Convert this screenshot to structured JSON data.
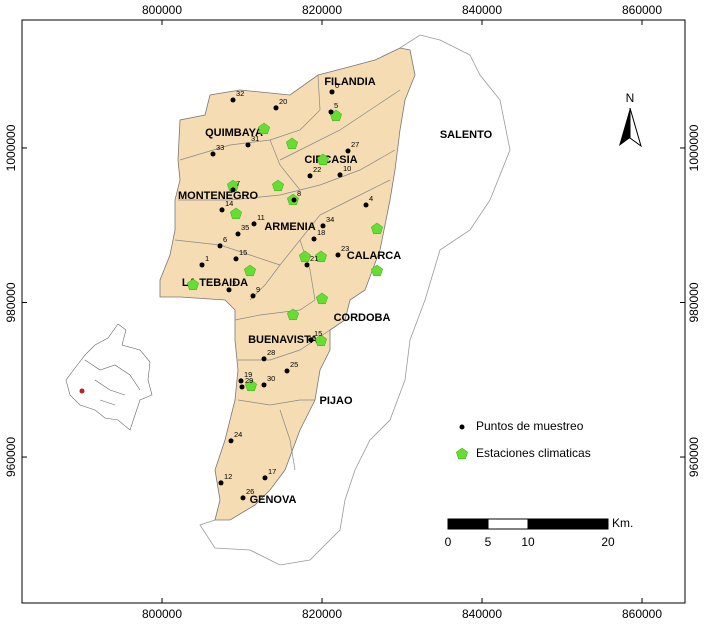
{
  "map": {
    "xlim": [
      782500,
      865375
    ],
    "ylim": [
      941110,
      1016560
    ],
    "xticks": [
      800000,
      820000,
      840000,
      860000
    ],
    "yticks": [
      960000,
      980000,
      1000000
    ],
    "north": "N",
    "regions": [
      "FILANDIA",
      "SALENTO",
      "QUIMBAYA",
      "CIRCASIA",
      "MONTENEGRO",
      "ARMENIA",
      "CALARCA",
      "LA TEBAIDA",
      "CORDOBA",
      "BUENAVISTA",
      "PIJAO",
      "GENOVA"
    ],
    "legend": {
      "points": "Puntos de muestreo",
      "stations": "Estaciones climaticas"
    },
    "scale": {
      "ticks": [
        0,
        5,
        10,
        20
      ],
      "unit": "Km."
    },
    "sample_points": [
      {
        "label": "0",
        "x": 821250,
        "y": 1007250
      },
      {
        "label": "5",
        "x": 821125,
        "y": 1004660
      },
      {
        "label": "32",
        "x": 808875,
        "y": 1006210
      },
      {
        "label": "20",
        "x": 814250,
        "y": 1005180
      },
      {
        "label": "33",
        "x": 806375,
        "y": 999220
      },
      {
        "label": "31",
        "x": 810750,
        "y": 1000390
      },
      {
        "label": "27",
        "x": 823250,
        "y": 999610
      },
      {
        "label": "22",
        "x": 818500,
        "y": 996380
      },
      {
        "label": "10",
        "x": 822250,
        "y": 996510
      },
      {
        "label": "7",
        "x": 808875,
        "y": 994570
      },
      {
        "label": "8",
        "x": 816500,
        "y": 993270
      },
      {
        "label": "14",
        "x": 807500,
        "y": 991980
      },
      {
        "label": "11",
        "x": 811500,
        "y": 990170
      },
      {
        "label": "35",
        "x": 809500,
        "y": 988870
      },
      {
        "label": "34",
        "x": 820125,
        "y": 989910
      },
      {
        "label": "4",
        "x": 825500,
        "y": 992620
      },
      {
        "label": "6",
        "x": 807250,
        "y": 987320
      },
      {
        "label": "18",
        "x": 819000,
        "y": 988220
      },
      {
        "label": "23",
        "x": 822000,
        "y": 986150
      },
      {
        "label": "15",
        "x": 809250,
        "y": 985640
      },
      {
        "label": "1",
        "x": 805000,
        "y": 984860
      },
      {
        "label": "21",
        "x": 818125,
        "y": 984860
      },
      {
        "label": "2",
        "x": 808375,
        "y": 981630
      },
      {
        "label": "9",
        "x": 811375,
        "y": 980850
      },
      {
        "label": "15",
        "x": 818625,
        "y": 975160
      },
      {
        "label": "28",
        "x": 812750,
        "y": 972700
      },
      {
        "label": "25",
        "x": 815625,
        "y": 971140
      },
      {
        "label": "19",
        "x": 809875,
        "y": 969850
      },
      {
        "label": "29",
        "x": 810000,
        "y": 969070
      },
      {
        "label": "30",
        "x": 812750,
        "y": 969330
      },
      {
        "label": "24",
        "x": 808625,
        "y": 962090
      },
      {
        "label": "12",
        "x": 807375,
        "y": 956650
      },
      {
        "label": "17",
        "x": 812875,
        "y": 957300
      },
      {
        "label": "26",
        "x": 810125,
        "y": 954710
      }
    ],
    "stations": [
      {
        "x": 812750,
        "y": 1002460
      },
      {
        "x": 816250,
        "y": 1000520
      },
      {
        "x": 821750,
        "y": 1004140
      },
      {
        "x": 808875,
        "y": 995080
      },
      {
        "x": 814500,
        "y": 995080
      },
      {
        "x": 809250,
        "y": 991460
      },
      {
        "x": 816375,
        "y": 993270
      },
      {
        "x": 820125,
        "y": 998450
      },
      {
        "x": 826875,
        "y": 989520
      },
      {
        "x": 817875,
        "y": 985900
      },
      {
        "x": 819875,
        "y": 985900
      },
      {
        "x": 811000,
        "y": 984080
      },
      {
        "x": 826875,
        "y": 984080
      },
      {
        "x": 803875,
        "y": 982270
      },
      {
        "x": 820000,
        "y": 980460
      },
      {
        "x": 816375,
        "y": 978390
      },
      {
        "x": 819875,
        "y": 975030
      },
      {
        "x": 811125,
        "y": 969200
      }
    ]
  }
}
